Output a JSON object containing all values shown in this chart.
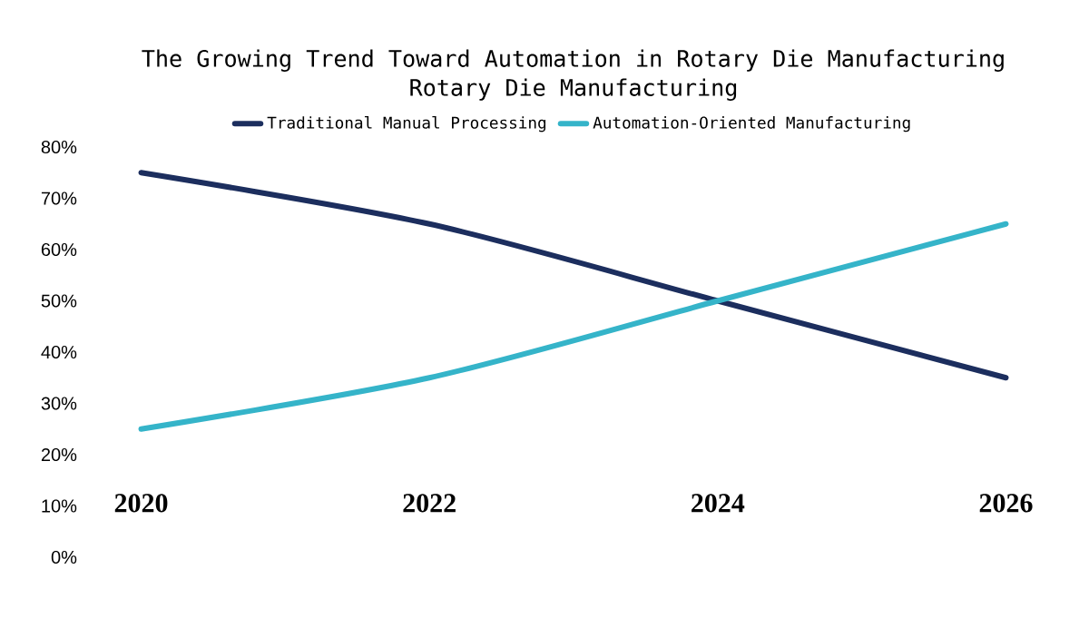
{
  "chart_data": {
    "type": "line",
    "title": "The Growing Trend Toward Automation in Rotary Die Manufacturing",
    "subtitle": "Rotary Die Manufacturing",
    "categories": [
      "2020",
      "2022",
      "2024",
      "2026"
    ],
    "series": [
      {
        "name": "Traditional Manual Processing",
        "color": "#1c2e5e",
        "values": [
          75,
          65,
          50,
          35
        ]
      },
      {
        "name": "Automation-Oriented Manufacturing",
        "color": "#35b4c9",
        "values": [
          25,
          35,
          50,
          65
        ]
      }
    ],
    "ylim": [
      0,
      80
    ],
    "yticks": [
      {
        "value": 0,
        "label": "0%"
      },
      {
        "value": 10,
        "label": "10%"
      },
      {
        "value": 20,
        "label": "20%"
      },
      {
        "value": 30,
        "label": "30%"
      },
      {
        "value": 40,
        "label": "40%"
      },
      {
        "value": 50,
        "label": "50%"
      },
      {
        "value": 60,
        "label": "60%"
      },
      {
        "value": 70,
        "label": "70%"
      },
      {
        "value": 80,
        "label": "80%"
      }
    ],
    "grid": false,
    "legend": "top",
    "marker": "none",
    "line_style": "solid"
  }
}
